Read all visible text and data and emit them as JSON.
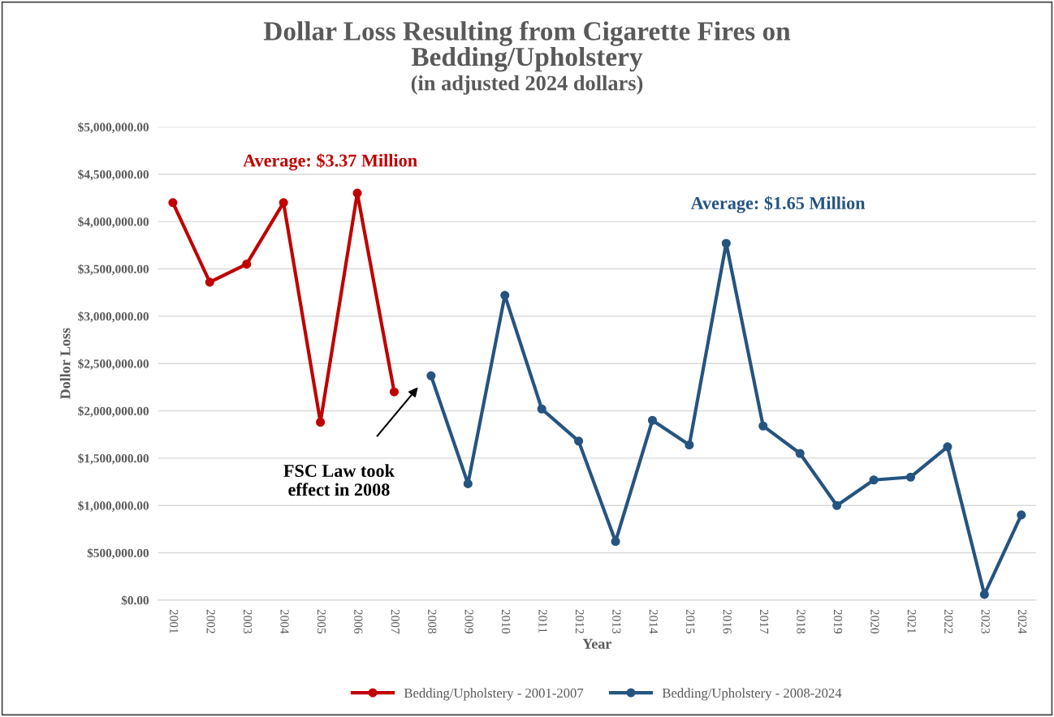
{
  "chart_data": {
    "type": "line",
    "title": "Dollar Loss Resulting from Cigarette Fires on\nBedding/Upholstery",
    "subtitle": "(in adjusted 2024 dollars)",
    "xlabel": "Year",
    "ylabel": "Dollor Loss",
    "categories": [
      "2001",
      "2002",
      "2003",
      "2004",
      "2005",
      "2006",
      "2007",
      "2008",
      "2009",
      "2010",
      "2011",
      "2012",
      "2013",
      "2014",
      "2015",
      "2016",
      "2017",
      "2018",
      "2019",
      "2020",
      "2021",
      "2022",
      "2023",
      "2024"
    ],
    "series": [
      {
        "name": "Bedding/Upholstery - 2001-2007",
        "color": "#c00000",
        "values": [
          4200000,
          3360000,
          3550000,
          4200000,
          1880000,
          4300000,
          2200000,
          null,
          null,
          null,
          null,
          null,
          null,
          null,
          null,
          null,
          null,
          null,
          null,
          null,
          null,
          null,
          null,
          null
        ]
      },
      {
        "name": "Bedding/Upholstery - 2008-2024",
        "color": "#255480",
        "values": [
          null,
          null,
          null,
          null,
          null,
          null,
          null,
          2370000,
          1230000,
          3220000,
          2020000,
          1680000,
          620000,
          1900000,
          1640000,
          3770000,
          1840000,
          1550000,
          1000000,
          1270000,
          1300000,
          1620000,
          60000,
          900000
        ]
      }
    ],
    "annotations": [
      "Average: $3.37 Million",
      "Average: $1.65 Million",
      "FSC Law took\neffect in 2008"
    ],
    "ylim": [
      0,
      5000000
    ],
    "yticks": [
      {
        "value": 0,
        "label": "$0.00"
      },
      {
        "value": 500000,
        "label": "$500,000.00"
      },
      {
        "value": 1000000,
        "label": "$1,000,000.00"
      },
      {
        "value": 1500000,
        "label": "$1,500,000.00"
      },
      {
        "value": 2000000,
        "label": "$2,000,000.00"
      },
      {
        "value": 2500000,
        "label": "$2,500,000.00"
      },
      {
        "value": 3000000,
        "label": "$3,000,000.00"
      },
      {
        "value": 3500000,
        "label": "$3,500,000.00"
      },
      {
        "value": 4000000,
        "label": "$4,000,000.00"
      },
      {
        "value": 4500000,
        "label": "$4,500,000.00"
      },
      {
        "value": 5000000,
        "label": "$5,000,000.00"
      }
    ],
    "grid": "y",
    "legend": "bottom",
    "marker": "circle",
    "line_style": "solid"
  }
}
